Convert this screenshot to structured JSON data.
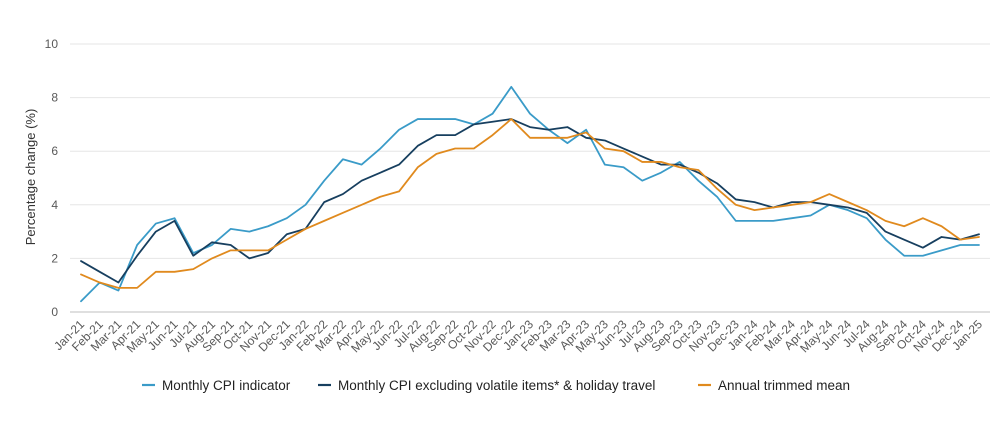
{
  "chart_data": {
    "type": "line",
    "title": "",
    "xlabel": "",
    "ylabel": "Percentage change (%)",
    "ylim": [
      0,
      10
    ],
    "yticks": [
      0,
      2,
      4,
      6,
      8,
      10
    ],
    "grid": "horizontal",
    "legend_position": "bottom",
    "categories": [
      "Jan-21",
      "Feb-21",
      "Mar-21",
      "Apr-21",
      "May-21",
      "Jun-21",
      "Jul-21",
      "Aug-21",
      "Sep-21",
      "Oct-21",
      "Nov-21",
      "Dec-21",
      "Jan-22",
      "Feb-22",
      "Mar-22",
      "Apr-22",
      "May-22",
      "Jun-22",
      "Jul-22",
      "Aug-22",
      "Sep-22",
      "Oct-22",
      "Nov-22",
      "Dec-22",
      "Jan-23",
      "Feb-23",
      "Mar-23",
      "Apr-23",
      "May-23",
      "Jun-23",
      "Jul-23",
      "Aug-23",
      "Sep-23",
      "Oct-23",
      "Nov-23",
      "Dec-23",
      "Jan-24",
      "Feb-24",
      "Mar-24",
      "Apr-24",
      "May-24",
      "Jun-24",
      "Jul-24",
      "Aug-24",
      "Sep-24",
      "Oct-24",
      "Nov-24",
      "Dec-24",
      "Jan-25"
    ],
    "series": [
      {
        "name": "Monthly CPI indicator",
        "color": "#3a9bc8",
        "values": [
          0.4,
          1.1,
          0.8,
          2.5,
          3.3,
          3.5,
          2.2,
          2.5,
          3.1,
          3.0,
          3.2,
          3.5,
          4.0,
          4.9,
          5.7,
          5.5,
          6.1,
          6.8,
          7.2,
          7.2,
          7.2,
          7.0,
          7.4,
          8.4,
          7.4,
          6.8,
          6.3,
          6.8,
          5.5,
          5.4,
          4.9,
          5.2,
          5.6,
          4.9,
          4.3,
          3.4,
          3.4,
          3.4,
          3.5,
          3.6,
          4.0,
          3.8,
          3.5,
          2.7,
          2.1,
          2.1,
          2.3,
          2.5,
          2.5
        ]
      },
      {
        "name": "Monthly CPI excluding volatile items* & holiday travel",
        "color": "#173f5f",
        "values": [
          1.9,
          1.5,
          1.1,
          2.1,
          3.0,
          3.4,
          2.1,
          2.6,
          2.5,
          2.0,
          2.2,
          2.9,
          3.1,
          4.1,
          4.4,
          4.9,
          5.2,
          5.5,
          6.2,
          6.6,
          6.6,
          7.0,
          7.1,
          7.2,
          6.9,
          6.8,
          6.9,
          6.5,
          6.4,
          6.1,
          5.8,
          5.5,
          5.5,
          5.2,
          4.8,
          4.2,
          4.1,
          3.9,
          4.1,
          4.1,
          4.0,
          3.9,
          3.7,
          3.0,
          2.7,
          2.4,
          2.8,
          2.7,
          2.9
        ]
      },
      {
        "name": "Annual trimmed mean",
        "color": "#e08a1e",
        "values": [
          1.4,
          1.1,
          0.9,
          0.9,
          1.5,
          1.5,
          1.6,
          2.0,
          2.3,
          2.3,
          2.3,
          2.7,
          3.1,
          3.4,
          3.7,
          4.0,
          4.3,
          4.5,
          5.4,
          5.9,
          6.1,
          6.1,
          6.6,
          7.2,
          6.5,
          6.5,
          6.5,
          6.7,
          6.1,
          6.0,
          5.6,
          5.6,
          5.4,
          5.3,
          4.6,
          4.0,
          3.8,
          3.9,
          4.0,
          4.1,
          4.4,
          4.1,
          3.8,
          3.4,
          3.2,
          3.5,
          3.2,
          2.7,
          2.8
        ]
      }
    ]
  }
}
